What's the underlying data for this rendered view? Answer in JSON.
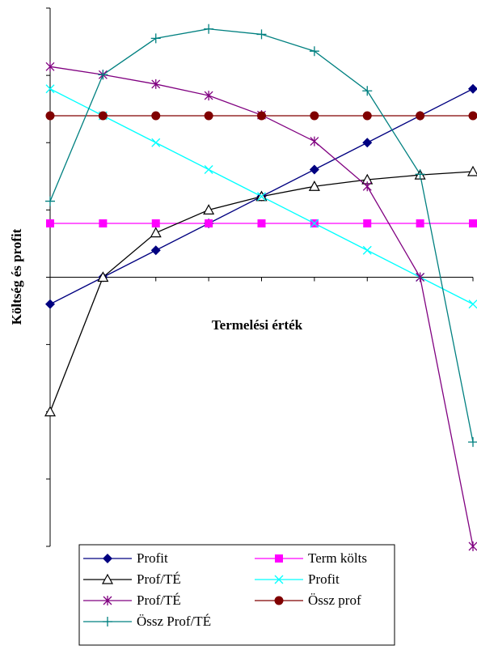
{
  "chart_data": {
    "type": "line",
    "y_label": "Költség és profit",
    "x_label": "Termelési érték",
    "categories": [
      null,
      null,
      null,
      null,
      null,
      null,
      null,
      null,
      null
    ],
    "ylim": [
      -4,
      4
    ],
    "yticks": [
      -4,
      -3,
      -2,
      -1,
      0,
      1,
      2,
      3,
      4
    ],
    "legend": "bottom",
    "series": [
      {
        "name": "Profit",
        "color": "#000080",
        "marker": "diamond",
        "values": [
          -0.4,
          0,
          0.4,
          0.8,
          1.2,
          1.6,
          2.0,
          2.4,
          2.8
        ]
      },
      {
        "name": "Term költs",
        "color": "#ff00ff",
        "marker": "square",
        "values": [
          0.8,
          0.8,
          0.8,
          0.8,
          0.8,
          0.8,
          0.8,
          0.8,
          0.8
        ]
      },
      {
        "name": "Prof/TÉ",
        "color": "#000000",
        "marker": "triangle",
        "values": [
          -2.0,
          0,
          0.66,
          1.0,
          1.2,
          1.35,
          1.45,
          1.52,
          1.57
        ]
      },
      {
        "name": "Profit",
        "color": "#00ffff",
        "marker": "x",
        "values": [
          2.8,
          2.4,
          2.0,
          1.6,
          1.2,
          0.8,
          0.4,
          0,
          -0.4
        ]
      },
      {
        "name": "Prof/TÉ",
        "color": "#800080",
        "marker": "star",
        "values": [
          3.13,
          3.01,
          2.87,
          2.7,
          2.41,
          2.02,
          1.35,
          0,
          -4.0
        ]
      },
      {
        "name": "Össz prof",
        "color": "#800000",
        "marker": "circle",
        "values": [
          2.4,
          2.4,
          2.4,
          2.4,
          2.4,
          2.4,
          2.4,
          2.4,
          2.4
        ]
      },
      {
        "name": "Össz Prof/TÉ",
        "color": "#008080",
        "marker": "plus",
        "values": [
          1.13,
          3.01,
          3.55,
          3.69,
          3.61,
          3.36,
          2.77,
          1.53,
          -2.45
        ]
      }
    ]
  }
}
